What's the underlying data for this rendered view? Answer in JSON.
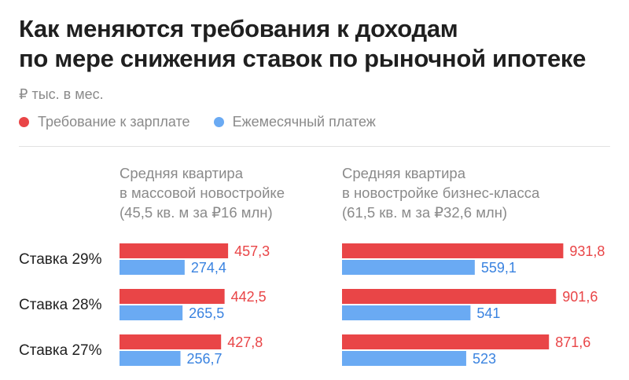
{
  "title_lines": [
    "Как меняются требования к доходам",
    "по мере снижения ставок по рыночной ипотеке"
  ],
  "unit": "₽ тыс. в мес.",
  "legend": [
    {
      "label": "Требование к зарплате",
      "color": "#e94547"
    },
    {
      "label": "Ежемесячный платеж",
      "color": "#6aaaf3"
    }
  ],
  "chart_data": {
    "type": "bar",
    "orientation": "horizontal",
    "categories": [
      "Ставка 29%",
      "Ставка 28%",
      "Ставка 27%"
    ],
    "panels": [
      {
        "heading": [
          "Средняя квартира",
          "в массовой новостройке",
          "(45,5 кв. м за ₽16 млн)"
        ],
        "series": [
          {
            "name": "Требование к зарплате",
            "values": [
              457.3,
              442.5,
              427.8
            ],
            "labels": [
              "457,3",
              "442,5",
              "427,8"
            ],
            "color": "#e94547"
          },
          {
            "name": "Ежемесячный платеж",
            "values": [
              274.4,
              265.5,
              256.7
            ],
            "labels": [
              "274,4",
              "265,5",
              "256,7"
            ],
            "color": "#6aaaf3"
          }
        ]
      },
      {
        "heading": [
          "Средняя квартира",
          "в новостройке бизнес-класса",
          "(61,5 кв. м за ₽32,6 млн)"
        ],
        "series": [
          {
            "name": "Требование к зарплате",
            "values": [
              931.8,
              901.6,
              871.6
            ],
            "labels": [
              "931,8",
              "901,6",
              "871,6"
            ],
            "color": "#e94547"
          },
          {
            "name": "Ежемесячный платеж",
            "values": [
              559.1,
              541,
              523
            ],
            "labels": [
              "559,1",
              "541",
              "523"
            ],
            "color": "#6aaaf3"
          }
        ]
      }
    ],
    "value_label_colors": {
      "red": "#e94547",
      "blue": "#3a83e0"
    }
  }
}
